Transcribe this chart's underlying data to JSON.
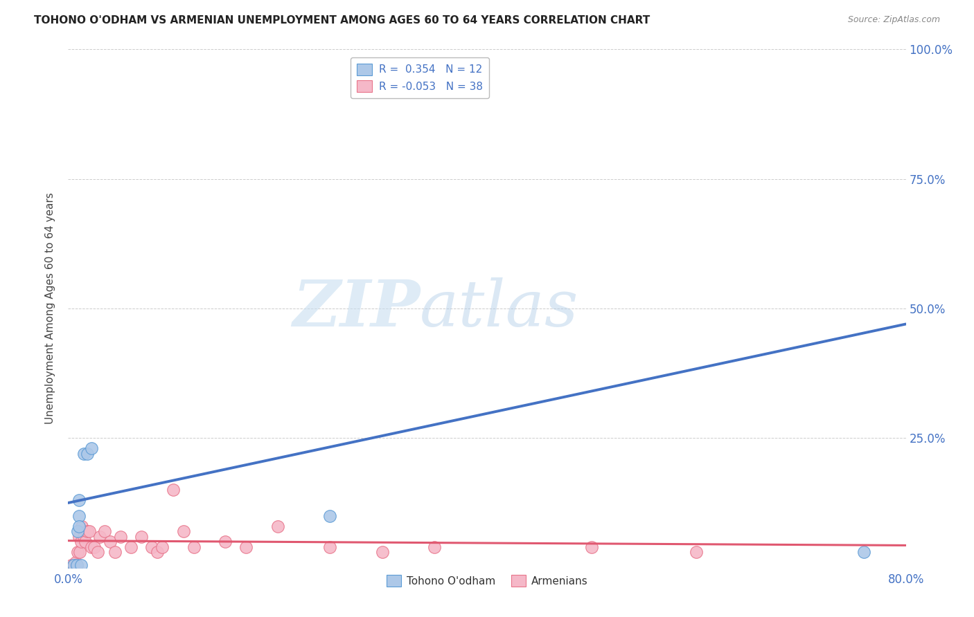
{
  "title": "TOHONO O'ODHAM VS ARMENIAN UNEMPLOYMENT AMONG AGES 60 TO 64 YEARS CORRELATION CHART",
  "source": "Source: ZipAtlas.com",
  "ylabel": "Unemployment Among Ages 60 to 64 years",
  "xlim": [
    0.0,
    0.8
  ],
  "ylim": [
    0.0,
    1.0
  ],
  "yticks": [
    0.0,
    0.25,
    0.5,
    0.75,
    1.0
  ],
  "right_ytick_labels": [
    "",
    "25.0%",
    "50.0%",
    "75.0%",
    "100.0%"
  ],
  "xticks": [
    0.0,
    0.2,
    0.4,
    0.6,
    0.8
  ],
  "xtick_labels": [
    "0.0%",
    "",
    "",
    "",
    "80.0%"
  ],
  "blue_R": 0.354,
  "blue_N": 12,
  "pink_R": -0.053,
  "pink_N": 38,
  "blue_fill_color": "#adc8e8",
  "pink_fill_color": "#f5b8c8",
  "blue_edge_color": "#5b9bd5",
  "pink_edge_color": "#e8748a",
  "blue_line_color": "#4472c4",
  "pink_line_color": "#e05870",
  "watermark_zip": "ZIP",
  "watermark_atlas": "atlas",
  "tohono_points": [
    [
      0.005,
      0.005
    ],
    [
      0.008,
      0.005
    ],
    [
      0.009,
      0.07
    ],
    [
      0.01,
      0.1
    ],
    [
      0.012,
      0.005
    ],
    [
      0.015,
      0.22
    ],
    [
      0.018,
      0.22
    ],
    [
      0.022,
      0.23
    ],
    [
      0.01,
      0.08
    ],
    [
      0.01,
      0.13
    ],
    [
      0.25,
      0.1
    ],
    [
      0.76,
      0.03
    ]
  ],
  "armenian_points": [
    [
      0.003,
      0.005
    ],
    [
      0.005,
      0.005
    ],
    [
      0.006,
      0.005
    ],
    [
      0.007,
      0.01
    ],
    [
      0.008,
      0.005
    ],
    [
      0.009,
      0.03
    ],
    [
      0.01,
      0.06
    ],
    [
      0.011,
      0.03
    ],
    [
      0.012,
      0.05
    ],
    [
      0.013,
      0.08
    ],
    [
      0.015,
      0.06
    ],
    [
      0.016,
      0.05
    ],
    [
      0.018,
      0.07
    ],
    [
      0.02,
      0.07
    ],
    [
      0.022,
      0.04
    ],
    [
      0.025,
      0.04
    ],
    [
      0.028,
      0.03
    ],
    [
      0.03,
      0.06
    ],
    [
      0.035,
      0.07
    ],
    [
      0.04,
      0.05
    ],
    [
      0.045,
      0.03
    ],
    [
      0.05,
      0.06
    ],
    [
      0.06,
      0.04
    ],
    [
      0.07,
      0.06
    ],
    [
      0.08,
      0.04
    ],
    [
      0.085,
      0.03
    ],
    [
      0.09,
      0.04
    ],
    [
      0.1,
      0.15
    ],
    [
      0.11,
      0.07
    ],
    [
      0.12,
      0.04
    ],
    [
      0.15,
      0.05
    ],
    [
      0.17,
      0.04
    ],
    [
      0.2,
      0.08
    ],
    [
      0.25,
      0.04
    ],
    [
      0.3,
      0.03
    ],
    [
      0.35,
      0.04
    ],
    [
      0.5,
      0.04
    ],
    [
      0.6,
      0.03
    ]
  ],
  "blue_trend_x": [
    0.0,
    0.8
  ],
  "blue_trend_y": [
    0.125,
    0.47
  ],
  "pink_trend_x": [
    0.0,
    0.8
  ],
  "pink_trend_y": [
    0.052,
    0.043
  ],
  "background_color": "#ffffff",
  "grid_color": "#cccccc"
}
